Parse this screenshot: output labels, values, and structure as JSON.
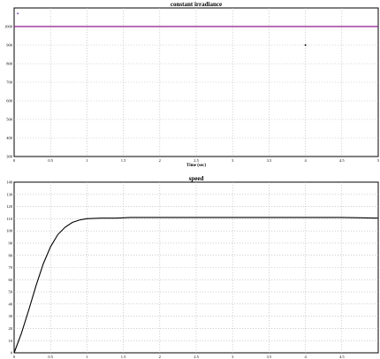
{
  "chart_data": [
    {
      "type": "line",
      "title": "constant irradiance",
      "xlabel": "Time (sec)",
      "ylabel": "",
      "xlim": [
        0,
        5
      ],
      "ylim": [
        300,
        1100
      ],
      "xticks": [
        "0",
        "0.5",
        "1",
        "1.5",
        "2",
        "2.5",
        "3",
        "3.5",
        "4",
        "4.5",
        "5"
      ],
      "yticks": [
        "300",
        "400",
        "500",
        "600",
        "700",
        "800",
        "900",
        "1000"
      ],
      "grid": true,
      "series": [
        {
          "x": [
            0,
            5
          ],
          "y": [
            1000,
            1000
          ],
          "color": "#8b1a8b"
        }
      ],
      "markers": [
        {
          "x": 0.05,
          "y": 1070,
          "color": "#7c3aad"
        },
        {
          "x": 4.0,
          "y": 900,
          "color": "#000000"
        }
      ]
    },
    {
      "type": "line",
      "title": "speed",
      "xlabel": "",
      "ylabel": "",
      "xlim": [
        0,
        5
      ],
      "ylim": [
        0,
        140
      ],
      "xticks": [
        "0",
        "0.5",
        "1",
        "1.5",
        "2",
        "2.5",
        "3",
        "3.5",
        "4",
        "4.5"
      ],
      "yticks": [
        "0",
        "10",
        "20",
        "30",
        "40",
        "50",
        "60",
        "70",
        "80",
        "90",
        "100",
        "110",
        "120",
        "130",
        "140"
      ],
      "grid": true,
      "series": [
        {
          "color": "#000000",
          "x": [
            0,
            0.1,
            0.2,
            0.3,
            0.4,
            0.5,
            0.6,
            0.7,
            0.8,
            0.9,
            1.0,
            1.2,
            1.4,
            1.6,
            1.8,
            2.0,
            2.5,
            3.0,
            3.5,
            4.0,
            4.5,
            5.0
          ],
          "y": [
            0,
            16,
            35,
            55,
            73,
            87,
            97,
            103,
            107,
            109,
            110,
            110.5,
            110.5,
            111,
            111,
            111,
            111,
            111,
            111,
            111,
            111,
            110.5
          ]
        }
      ]
    }
  ]
}
